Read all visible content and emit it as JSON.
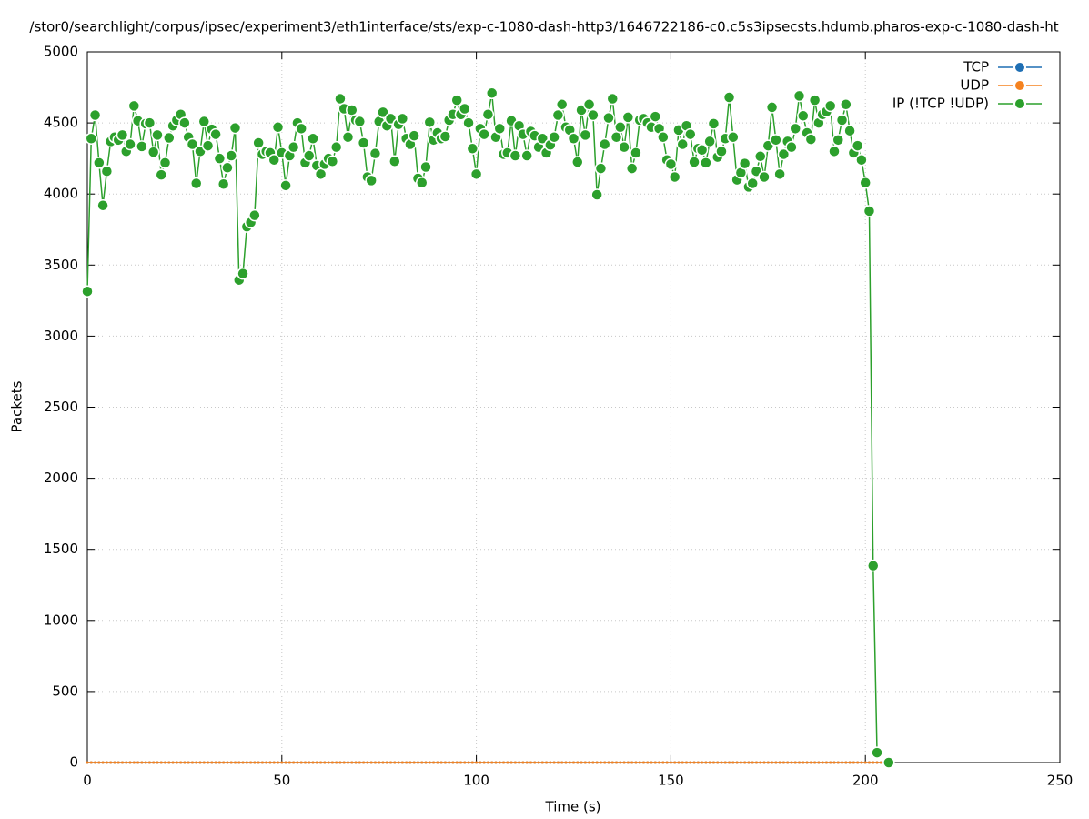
{
  "chart_data": {
    "type": "line",
    "title": "/stor0/searchlight/corpus/ipsec/experiment3/eth1interface/sts/exp-c-1080-dash-http3/1646722186-c0.c5s3ipsecsts.hdumb.pharos-exp-c-1080-dash-ht",
    "x_label": "Time (s)",
    "y_label": "Packets",
    "xlim": [
      0,
      250
    ],
    "xticks": [
      0,
      50,
      100,
      150,
      200,
      250
    ],
    "ylim": [
      0,
      5000
    ],
    "yticks": [
      0,
      500,
      1000,
      1500,
      2000,
      2500,
      3000,
      3500,
      4000,
      4500,
      5000
    ],
    "grid": true,
    "legend": "top right",
    "x": [
      0,
      1,
      2,
      3,
      4,
      5,
      6,
      7,
      8,
      9,
      10,
      11,
      12,
      13,
      14,
      15,
      16,
      17,
      18,
      19,
      20,
      21,
      22,
      23,
      24,
      25,
      26,
      27,
      28,
      29,
      30,
      31,
      32,
      33,
      34,
      35,
      36,
      37,
      38,
      39,
      40,
      41,
      42,
      43,
      44,
      45,
      46,
      47,
      48,
      49,
      50,
      51,
      52,
      53,
      54,
      55,
      56,
      57,
      58,
      59,
      60,
      61,
      62,
      63,
      64,
      65,
      66,
      67,
      68,
      69,
      70,
      71,
      72,
      73,
      74,
      75,
      76,
      77,
      78,
      79,
      80,
      81,
      82,
      83,
      84,
      85,
      86,
      87,
      88,
      89,
      90,
      91,
      92,
      93,
      94,
      95,
      96,
      97,
      98,
      99,
      100,
      101,
      102,
      103,
      104,
      105,
      106,
      107,
      108,
      109,
      110,
      111,
      112,
      113,
      114,
      115,
      116,
      117,
      118,
      119,
      120,
      121,
      122,
      123,
      124,
      125,
      126,
      127,
      128,
      129,
      130,
      131,
      132,
      133,
      134,
      135,
      136,
      137,
      138,
      139,
      140,
      141,
      142,
      143,
      144,
      145,
      146,
      147,
      148,
      149,
      150,
      151,
      152,
      153,
      154,
      155,
      156,
      157,
      158,
      159,
      160,
      161,
      162,
      163,
      164,
      165,
      166,
      167,
      168,
      169,
      170,
      171,
      172,
      173,
      174,
      175,
      176,
      177,
      178,
      179,
      180,
      181,
      182,
      183,
      184,
      185,
      186,
      187,
      188,
      189,
      190,
      191,
      192,
      193,
      194,
      195,
      196,
      197,
      198,
      199,
      200,
      201,
      202,
      203,
      204,
      206
    ],
    "series": [
      {
        "name": "TCP",
        "color": "#1f6fb4",
        "values": [
          0,
          0,
          0,
          0,
          0,
          0,
          0,
          0,
          0,
          0,
          0,
          0,
          0,
          0,
          0,
          0,
          0,
          0,
          0,
          0,
          0,
          0,
          0,
          0,
          0,
          0,
          0,
          0,
          0,
          0,
          0,
          0,
          0,
          0,
          0,
          0,
          0,
          0,
          0,
          0,
          0,
          0,
          0,
          0,
          0,
          0,
          0,
          0,
          0,
          0,
          0,
          0,
          0,
          0,
          0,
          0,
          0,
          0,
          0,
          0,
          0,
          0,
          0,
          0,
          0,
          0,
          0,
          0,
          0,
          0,
          0,
          0,
          0,
          0,
          0,
          0,
          0,
          0,
          0,
          0,
          0,
          0,
          0,
          0,
          0,
          0,
          0,
          0,
          0,
          0,
          0,
          0,
          0,
          0,
          0,
          0,
          0,
          0,
          0,
          0,
          0,
          0,
          0,
          0,
          0,
          0,
          0,
          0,
          0,
          0,
          0,
          0,
          0,
          0,
          0,
          0,
          0,
          0,
          0,
          0,
          0,
          0,
          0,
          0,
          0,
          0,
          0,
          0,
          0,
          0,
          0,
          0,
          0,
          0,
          0,
          0,
          0,
          0,
          0,
          0,
          0,
          0,
          0,
          0,
          0,
          0,
          0,
          0,
          0,
          0,
          0,
          0,
          0,
          0,
          0,
          0,
          0,
          0,
          0,
          0,
          0,
          0,
          0,
          0,
          0,
          0,
          0,
          0,
          0,
          0,
          0,
          0,
          0,
          0,
          0,
          0,
          0,
          0,
          0,
          0,
          0,
          0,
          0,
          0,
          0,
          0,
          0,
          0,
          0,
          0,
          0,
          0,
          0,
          0,
          0,
          0,
          0,
          0,
          0,
          0,
          0,
          0,
          0,
          0,
          0,
          0
        ]
      },
      {
        "name": "UDP",
        "color": "#f5821f",
        "values": [
          0,
          0,
          0,
          0,
          0,
          0,
          0,
          0,
          0,
          0,
          0,
          0,
          0,
          0,
          0,
          0,
          0,
          0,
          0,
          0,
          0,
          0,
          0,
          0,
          0,
          0,
          0,
          0,
          0,
          0,
          0,
          0,
          0,
          0,
          0,
          0,
          0,
          0,
          0,
          0,
          0,
          0,
          0,
          0,
          0,
          0,
          0,
          0,
          0,
          0,
          0,
          0,
          0,
          0,
          0,
          0,
          0,
          0,
          0,
          0,
          0,
          0,
          0,
          0,
          0,
          0,
          0,
          0,
          0,
          0,
          0,
          0,
          0,
          0,
          0,
          0,
          0,
          0,
          0,
          0,
          0,
          0,
          0,
          0,
          0,
          0,
          0,
          0,
          0,
          0,
          0,
          0,
          0,
          0,
          0,
          0,
          0,
          0,
          0,
          0,
          0,
          0,
          0,
          0,
          0,
          0,
          0,
          0,
          0,
          0,
          0,
          0,
          0,
          0,
          0,
          0,
          0,
          0,
          0,
          0,
          0,
          0,
          0,
          0,
          0,
          0,
          0,
          0,
          0,
          0,
          0,
          0,
          0,
          0,
          0,
          0,
          0,
          0,
          0,
          0,
          0,
          0,
          0,
          0,
          0,
          0,
          0,
          0,
          0,
          0,
          0,
          0,
          0,
          0,
          0,
          0,
          0,
          0,
          0,
          0,
          0,
          0,
          0,
          0,
          0,
          0,
          0,
          0,
          0,
          0,
          0,
          0,
          0,
          0,
          0,
          0,
          0,
          0,
          0,
          0,
          0,
          0,
          0,
          0,
          0,
          0,
          0,
          0,
          0,
          0,
          0,
          0,
          0,
          0,
          0,
          0,
          0,
          0,
          0,
          0,
          0,
          0,
          0,
          0,
          0,
          0
        ]
      },
      {
        "name": "IP (!TCP  !UDP)",
        "color": "#2ca02c",
        "values": [
          3315,
          4390,
          4555,
          4220,
          3920,
          4160,
          4370,
          4400,
          4380,
          4415,
          4300,
          4350,
          4620,
          4515,
          4335,
          4495,
          4500,
          4295,
          4415,
          4135,
          4220,
          4395,
          4480,
          4520,
          4560,
          4500,
          4400,
          4350,
          4075,
          4300,
          4510,
          4340,
          4455,
          4420,
          4250,
          4070,
          4185,
          4270,
          4465,
          3395,
          3440,
          3770,
          3800,
          3850,
          4360,
          4280,
          4300,
          4290,
          4240,
          4470,
          4290,
          4060,
          4270,
          4330,
          4500,
          4460,
          4220,
          4270,
          4390,
          4200,
          4140,
          4210,
          4250,
          4230,
          4330,
          4670,
          4600,
          4400,
          4590,
          4520,
          4510,
          4360,
          4120,
          4095,
          4285,
          4510,
          4575,
          4480,
          4530,
          4230,
          4490,
          4530,
          4390,
          4350,
          4410,
          4110,
          4080,
          4190,
          4505,
          4380,
          4430,
          4390,
          4405,
          4520,
          4560,
          4660,
          4560,
          4600,
          4500,
          4320,
          4140,
          4460,
          4420,
          4560,
          4710,
          4400,
          4460,
          4280,
          4290,
          4515,
          4270,
          4480,
          4420,
          4270,
          4440,
          4410,
          4330,
          4390,
          4290,
          4345,
          4400,
          4555,
          4630,
          4470,
          4450,
          4390,
          4225,
          4590,
          4415,
          4630,
          4555,
          3995,
          4180,
          4350,
          4535,
          4670,
          4400,
          4470,
          4330,
          4540,
          4180,
          4290,
          4520,
          4530,
          4500,
          4470,
          4545,
          4460,
          4400,
          4240,
          4210,
          4120,
          4450,
          4350,
          4480,
          4420,
          4225,
          4320,
          4310,
          4220,
          4370,
          4495,
          4260,
          4300,
          4390,
          4680,
          4400,
          4100,
          4150,
          4215,
          4050,
          4075,
          4160,
          4265,
          4120,
          4340,
          4610,
          4380,
          4140,
          4280,
          4370,
          4330,
          4460,
          4690,
          4550,
          4430,
          4385,
          4660,
          4500,
          4560,
          4580,
          4620,
          4300,
          4380,
          4520,
          4630,
          4445,
          4290,
          4340,
          4240,
          4080,
          3880,
          1385,
          70,
          null,
          0
        ]
      }
    ]
  }
}
